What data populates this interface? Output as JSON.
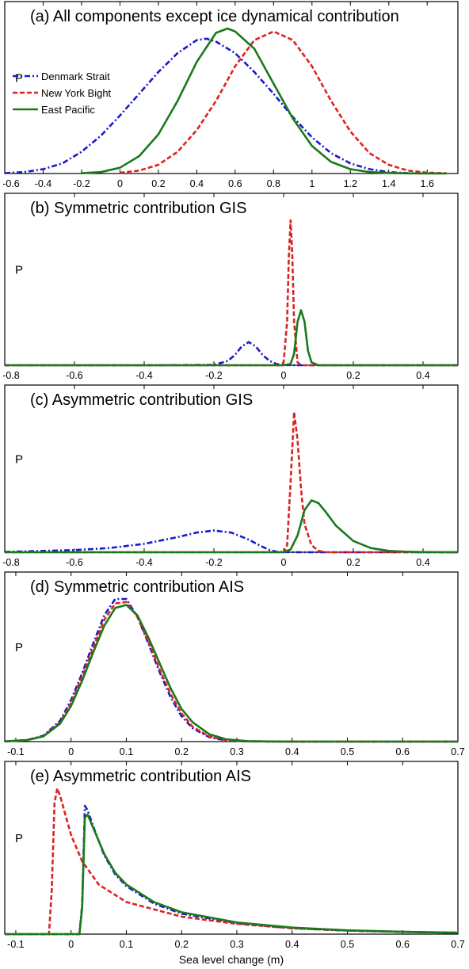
{
  "colors": {
    "Denmark Strait": "#1a1acc",
    "New York Bight": "#dd2222",
    "East Pacific": "#1a7a1a"
  },
  "dash": {
    "Denmark Strait": "dashdot",
    "New York Bight": "dash",
    "East Pacific": "solid"
  },
  "chart_data": [
    {
      "type": "line",
      "title": "(a) All components except ice dynamical contribution",
      "ylabel": "P",
      "xlabel": "",
      "xlim": [
        -0.6,
        1.76
      ],
      "xticks": [
        -0.6,
        -0.4,
        -0.2,
        0,
        0.2,
        0.4,
        0.6,
        0.8,
        1,
        1.2,
        1.4,
        1.6
      ],
      "legend": {
        "placement": "top-left",
        "entries": [
          "Denmark Strait",
          "New York Bight",
          "East Pacific"
        ]
      },
      "series": [
        {
          "name": "Denmark Strait",
          "x": [
            -0.6,
            -0.5,
            -0.4,
            -0.3,
            -0.2,
            -0.1,
            0,
            0.1,
            0.2,
            0.3,
            0.4,
            0.45,
            0.5,
            0.6,
            0.7,
            0.8,
            0.9,
            1,
            1.1,
            1.2,
            1.3,
            1.4,
            1.5
          ],
          "y": [
            0.003,
            0.01,
            0.03,
            0.07,
            0.15,
            0.26,
            0.4,
            0.55,
            0.7,
            0.83,
            0.92,
            0.93,
            0.91,
            0.83,
            0.7,
            0.55,
            0.39,
            0.25,
            0.14,
            0.07,
            0.03,
            0.01,
            0.003
          ]
        },
        {
          "name": "New York Bight",
          "x": [
            0,
            0.1,
            0.2,
            0.3,
            0.4,
            0.5,
            0.6,
            0.7,
            0.8,
            0.9,
            1,
            1.1,
            1.2,
            1.3,
            1.4,
            1.5,
            1.6,
            1.7
          ],
          "y": [
            0.005,
            0.02,
            0.06,
            0.15,
            0.3,
            0.5,
            0.74,
            0.92,
            0.98,
            0.92,
            0.74,
            0.5,
            0.29,
            0.14,
            0.06,
            0.02,
            0.006,
            0.002
          ]
        },
        {
          "name": "East Pacific",
          "x": [
            -0.2,
            -0.1,
            0,
            0.1,
            0.2,
            0.3,
            0.4,
            0.5,
            0.56,
            0.6,
            0.7,
            0.8,
            0.9,
            1,
            1.1,
            1.2,
            1.3,
            1.4,
            1.5,
            1.6,
            1.7
          ],
          "y": [
            0.002,
            0.01,
            0.04,
            0.12,
            0.27,
            0.5,
            0.77,
            0.97,
            1.0,
            0.98,
            0.86,
            0.62,
            0.38,
            0.19,
            0.08,
            0.03,
            0.01,
            0.004,
            0.001,
            0.0003,
            0
          ]
        }
      ]
    },
    {
      "type": "line",
      "title": "(b) Symmetric contribution GIS",
      "ylabel": "P",
      "xlabel": "",
      "xlim": [
        -0.8,
        0.5
      ],
      "xticks": [
        -0.8,
        -0.6,
        -0.4,
        -0.2,
        0,
        0.2,
        0.4
      ],
      "series": [
        {
          "name": "Denmark Strait",
          "x": [
            -0.8,
            -0.4,
            -0.2,
            -0.16,
            -0.14,
            -0.12,
            -0.1,
            -0.08,
            -0.06,
            -0.04,
            -0.02,
            0,
            0.05,
            0.5
          ],
          "y": [
            0,
            0,
            0.003,
            0.03,
            0.07,
            0.13,
            0.16,
            0.13,
            0.07,
            0.03,
            0.008,
            0.001,
            0,
            0
          ]
        },
        {
          "name": "New York Bight",
          "x": [
            -0.8,
            -0.01,
            0,
            0.01,
            0.015,
            0.02,
            0.025,
            0.03,
            0.04,
            0.05,
            0.5
          ],
          "y": [
            0,
            0,
            0.02,
            0.3,
            0.75,
            1.0,
            0.75,
            0.3,
            0.02,
            0,
            0
          ]
        },
        {
          "name": "East Pacific",
          "x": [
            -0.8,
            0,
            0.02,
            0.03,
            0.04,
            0.05,
            0.06,
            0.07,
            0.08,
            0.1,
            0.5
          ],
          "y": [
            0,
            0,
            0.01,
            0.08,
            0.3,
            0.38,
            0.3,
            0.1,
            0.02,
            0,
            0
          ]
        }
      ]
    },
    {
      "type": "line",
      "title": "(c) Asymmetric contribution GIS",
      "ylabel": "P",
      "xlabel": "",
      "xlim": [
        -0.8,
        0.5
      ],
      "xticks": [
        -0.8,
        -0.6,
        -0.4,
        -0.2,
        0,
        0.2,
        0.4
      ],
      "series": [
        {
          "name": "Denmark Strait",
          "x": [
            -0.8,
            -0.6,
            -0.5,
            -0.4,
            -0.3,
            -0.25,
            -0.2,
            -0.15,
            -0.1,
            -0.07,
            -0.04,
            -0.02,
            0,
            0.05,
            0.5
          ],
          "y": [
            0.003,
            0.015,
            0.03,
            0.06,
            0.11,
            0.14,
            0.155,
            0.14,
            0.09,
            0.05,
            0.015,
            0.004,
            0.001,
            0,
            0
          ]
        },
        {
          "name": "New York Bight",
          "x": [
            -0.8,
            0,
            0.01,
            0.02,
            0.03,
            0.04,
            0.05,
            0.06,
            0.08,
            0.1,
            0.12,
            0.5
          ],
          "y": [
            0,
            0,
            0.05,
            0.5,
            1.0,
            0.8,
            0.45,
            0.2,
            0.05,
            0.01,
            0,
            0
          ]
        },
        {
          "name": "East Pacific",
          "x": [
            -0.8,
            0,
            0.02,
            0.04,
            0.06,
            0.08,
            0.1,
            0.12,
            0.15,
            0.2,
            0.25,
            0.3,
            0.35,
            0.4,
            0.5
          ],
          "y": [
            0,
            0,
            0.02,
            0.12,
            0.3,
            0.37,
            0.35,
            0.29,
            0.19,
            0.08,
            0.03,
            0.01,
            0.004,
            0.001,
            0
          ]
        }
      ]
    },
    {
      "type": "line",
      "title": "(d) Symmetric contribution AIS",
      "ylabel": "P",
      "xlabel": "",
      "xlim": [
        -0.12,
        0.7
      ],
      "xticks": [
        -0.1,
        0,
        0.1,
        0.2,
        0.3,
        0.4,
        0.5,
        0.6,
        0.7
      ],
      "series": [
        {
          "name": "Denmark Strait",
          "x": [
            -0.12,
            -0.08,
            -0.05,
            -0.02,
            0,
            0.02,
            0.04,
            0.06,
            0.08,
            0.1,
            0.12,
            0.14,
            0.16,
            0.18,
            0.2,
            0.22,
            0.25,
            0.28,
            0.32,
            0.4,
            0.7
          ],
          "y": [
            0.001,
            0.01,
            0.04,
            0.14,
            0.28,
            0.46,
            0.66,
            0.85,
            0.96,
            0.96,
            0.84,
            0.66,
            0.47,
            0.3,
            0.17,
            0.09,
            0.03,
            0.008,
            0.001,
            0,
            0
          ]
        },
        {
          "name": "New York Bight",
          "x": [
            -0.12,
            -0.08,
            -0.05,
            -0.02,
            0,
            0.02,
            0.04,
            0.06,
            0.08,
            0.1,
            0.12,
            0.14,
            0.16,
            0.18,
            0.2,
            0.22,
            0.25,
            0.28,
            0.32,
            0.4,
            0.7
          ],
          "y": [
            0.001,
            0.01,
            0.035,
            0.13,
            0.26,
            0.44,
            0.63,
            0.82,
            0.93,
            0.94,
            0.84,
            0.67,
            0.49,
            0.32,
            0.19,
            0.1,
            0.035,
            0.01,
            0.002,
            0,
            0
          ]
        },
        {
          "name": "East Pacific",
          "x": [
            -0.12,
            -0.08,
            -0.05,
            -0.02,
            0,
            0.02,
            0.04,
            0.06,
            0.08,
            0.1,
            0.12,
            0.14,
            0.16,
            0.18,
            0.2,
            0.22,
            0.25,
            0.28,
            0.32,
            0.36,
            0.4,
            0.7
          ],
          "y": [
            0.001,
            0.01,
            0.035,
            0.12,
            0.24,
            0.41,
            0.6,
            0.78,
            0.9,
            0.92,
            0.85,
            0.7,
            0.53,
            0.36,
            0.22,
            0.13,
            0.05,
            0.016,
            0.003,
            0.001,
            0,
            0
          ]
        }
      ]
    },
    {
      "type": "line",
      "title": "(e) Asymmetric contribution AIS",
      "ylabel": "P",
      "xlabel": "Sea level change (m)",
      "xlim": [
        -0.12,
        0.7
      ],
      "xticks": [
        -0.1,
        0,
        0.1,
        0.2,
        0.3,
        0.4,
        0.5,
        0.6,
        0.7
      ],
      "series": [
        {
          "name": "Denmark Strait",
          "x": [
            -0.12,
            0.015,
            0.02,
            0.025,
            0.03,
            0.04,
            0.06,
            0.08,
            0.1,
            0.15,
            0.2,
            0.3,
            0.4,
            0.5,
            0.6,
            0.7
          ],
          "y": [
            0,
            0,
            0.2,
            0.88,
            0.85,
            0.74,
            0.54,
            0.41,
            0.33,
            0.21,
            0.14,
            0.075,
            0.04,
            0.024,
            0.015,
            0.009
          ]
        },
        {
          "name": "New York Bight",
          "x": [
            -0.12,
            -0.04,
            -0.035,
            -0.03,
            -0.025,
            -0.02,
            0,
            0.02,
            0.05,
            0.1,
            0.2,
            0.3,
            0.4,
            0.5,
            0.6,
            0.7
          ],
          "y": [
            0,
            0,
            0.3,
            0.9,
            1.0,
            0.95,
            0.68,
            0.5,
            0.34,
            0.22,
            0.12,
            0.07,
            0.04,
            0.025,
            0.016,
            0.01
          ]
        },
        {
          "name": "East Pacific",
          "x": [
            -0.12,
            0.015,
            0.02,
            0.025,
            0.03,
            0.04,
            0.06,
            0.08,
            0.1,
            0.15,
            0.2,
            0.3,
            0.4,
            0.5,
            0.6,
            0.7
          ],
          "y": [
            0,
            0,
            0.18,
            0.8,
            0.82,
            0.73,
            0.55,
            0.42,
            0.34,
            0.22,
            0.15,
            0.08,
            0.045,
            0.026,
            0.016,
            0.01
          ]
        }
      ]
    }
  ]
}
